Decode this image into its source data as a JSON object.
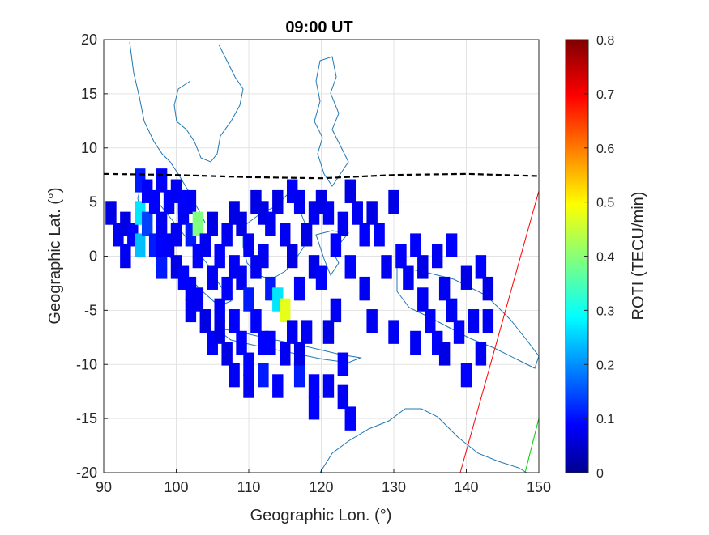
{
  "chart_data": {
    "type": "heatmap",
    "title": "09:00 UT",
    "xlabel": "Geographic Lon. (°)",
    "ylabel": "Geographic Lat. (°)",
    "xlim": [
      90,
      150
    ],
    "ylim": [
      -20,
      20
    ],
    "xticks": [
      90,
      100,
      110,
      120,
      130,
      140,
      150
    ],
    "yticks": [
      20,
      15,
      10,
      5,
      0,
      -5,
      -10,
      -15,
      -20
    ],
    "grid": true,
    "colorbar": {
      "label": "ROTI (TECU/min)",
      "range": [
        0,
        0.8
      ],
      "ticks": [
        0.8,
        0.7,
        0.6,
        0.5,
        0.4,
        0.3,
        0.2,
        0.1,
        0
      ],
      "colormap": "jet"
    },
    "magnetic_equator_lat_approx": [
      [
        90,
        7.6
      ],
      [
        100,
        7.5
      ],
      [
        110,
        7.3
      ],
      [
        120,
        7.2
      ],
      [
        130,
        7.5
      ],
      [
        140,
        7.6
      ],
      [
        150,
        7.4
      ]
    ],
    "cells": [
      [
        91,
        4,
        0.08
      ],
      [
        92,
        2,
        0.09
      ],
      [
        93,
        3,
        0.08
      ],
      [
        93,
        0,
        0.09
      ],
      [
        94,
        2,
        0.1
      ],
      [
        95,
        4,
        0.28
      ],
      [
        95,
        1,
        0.25
      ],
      [
        95,
        7,
        0.12
      ],
      [
        96,
        6,
        0.1
      ],
      [
        96,
        3,
        0.15
      ],
      [
        97,
        5,
        0.1
      ],
      [
        97,
        1,
        0.12
      ],
      [
        98,
        7,
        0.1
      ],
      [
        98,
        3,
        0.09
      ],
      [
        98,
        -1,
        0.12
      ],
      [
        99,
        5,
        0.1
      ],
      [
        99,
        1,
        0.09
      ],
      [
        100,
        6,
        0.09
      ],
      [
        100,
        2,
        0.09
      ],
      [
        100,
        -1,
        0.08
      ],
      [
        101,
        4,
        0.09
      ],
      [
        101,
        -2,
        0.1
      ],
      [
        102,
        5,
        0.09
      ],
      [
        102,
        2,
        0.12
      ],
      [
        102,
        -3,
        0.1
      ],
      [
        103,
        3,
        0.4
      ],
      [
        103,
        0,
        0.1
      ],
      [
        103,
        -4,
        0.09
      ],
      [
        104,
        1,
        0.09
      ],
      [
        104,
        -6,
        0.08
      ],
      [
        105,
        3,
        0.08
      ],
      [
        105,
        -2,
        0.09
      ],
      [
        105,
        -8,
        0.1
      ],
      [
        106,
        0,
        0.1
      ],
      [
        106,
        -5,
        0.09
      ],
      [
        107,
        2,
        0.09
      ],
      [
        107,
        -3,
        0.1
      ],
      [
        107,
        -9,
        0.08
      ],
      [
        108,
        4,
        0.08
      ],
      [
        108,
        -1,
        0.09
      ],
      [
        108,
        -6,
        0.1
      ],
      [
        108,
        -11,
        0.09
      ],
      [
        109,
        3,
        0.08
      ],
      [
        109,
        -2,
        0.09
      ],
      [
        109,
        -8,
        0.1
      ],
      [
        110,
        1,
        0.09
      ],
      [
        110,
        -4,
        0.12
      ],
      [
        110,
        -10,
        0.1
      ],
      [
        110,
        -12,
        0.09
      ],
      [
        111,
        5,
        0.08
      ],
      [
        111,
        -1,
        0.09
      ],
      [
        111,
        -6,
        0.1
      ],
      [
        112,
        4,
        0.08
      ],
      [
        112,
        0,
        0.09
      ],
      [
        112,
        -11,
        0.12
      ],
      [
        113,
        3,
        0.09
      ],
      [
        113,
        -3,
        0.12
      ],
      [
        113,
        -8,
        0.1
      ],
      [
        114,
        5,
        0.08
      ],
      [
        114,
        -4,
        0.28
      ],
      [
        114,
        -12,
        0.1
      ],
      [
        115,
        2,
        0.09
      ],
      [
        115,
        -5,
        0.48
      ],
      [
        115,
        -9,
        0.09
      ],
      [
        116,
        6,
        0.1
      ],
      [
        116,
        0,
        0.08
      ],
      [
        116,
        -7,
        0.09
      ],
      [
        117,
        5,
        0.09
      ],
      [
        117,
        -3,
        0.1
      ],
      [
        117,
        -11,
        0.12
      ],
      [
        118,
        2,
        0.08
      ],
      [
        118,
        -7,
        0.09
      ],
      [
        119,
        4,
        0.09
      ],
      [
        119,
        -1,
        0.08
      ],
      [
        119,
        -12,
        0.1
      ],
      [
        120,
        5,
        0.08
      ],
      [
        120,
        -2,
        0.1
      ],
      [
        121,
        4,
        0.09
      ],
      [
        121,
        -7,
        0.08
      ],
      [
        121,
        -12,
        0.09
      ],
      [
        122,
        1,
        0.1
      ],
      [
        122,
        -5,
        0.09
      ],
      [
        123,
        3,
        0.09
      ],
      [
        123,
        -10,
        0.1
      ],
      [
        124,
        6,
        0.08
      ],
      [
        124,
        -1,
        0.1
      ],
      [
        125,
        4,
        0.09
      ],
      [
        126,
        2,
        0.1
      ],
      [
        126,
        -3,
        0.09
      ],
      [
        127,
        4,
        0.08
      ],
      [
        127,
        -6,
        0.09
      ],
      [
        128,
        2,
        0.1
      ],
      [
        129,
        -1,
        0.09
      ],
      [
        130,
        5,
        0.08
      ],
      [
        130,
        -7,
        0.09
      ],
      [
        131,
        0,
        0.1
      ],
      [
        132,
        -2,
        0.09
      ],
      [
        133,
        1,
        0.1
      ],
      [
        133,
        -8,
        0.09
      ],
      [
        134,
        -1,
        0.08
      ],
      [
        134,
        -4,
        0.09
      ],
      [
        135,
        -6,
        0.1
      ],
      [
        136,
        0,
        0.09
      ],
      [
        136,
        -8,
        0.1
      ],
      [
        137,
        -3,
        0.09
      ],
      [
        137,
        -9,
        0.08
      ],
      [
        138,
        1,
        0.1
      ],
      [
        138,
        -5,
        0.09
      ],
      [
        139,
        -7,
        0.1
      ],
      [
        140,
        -2,
        0.08
      ],
      [
        140,
        -11,
        0.1
      ],
      [
        141,
        -6,
        0.09
      ],
      [
        142,
        -1,
        0.1
      ],
      [
        142,
        -9,
        0.09
      ],
      [
        143,
        -3,
        0.08
      ],
      [
        143,
        -6,
        0.09
      ],
      [
        119,
        -14,
        0.1
      ],
      [
        123,
        -13,
        0.09
      ],
      [
        124,
        -15,
        0.1
      ],
      [
        98,
        1,
        0.1
      ],
      [
        102,
        -5,
        0.09
      ],
      [
        106,
        -7,
        0.08
      ],
      [
        112,
        -8,
        0.1
      ],
      [
        117,
        -9,
        0.08
      ],
      [
        101,
        5,
        0.1
      ]
    ]
  }
}
